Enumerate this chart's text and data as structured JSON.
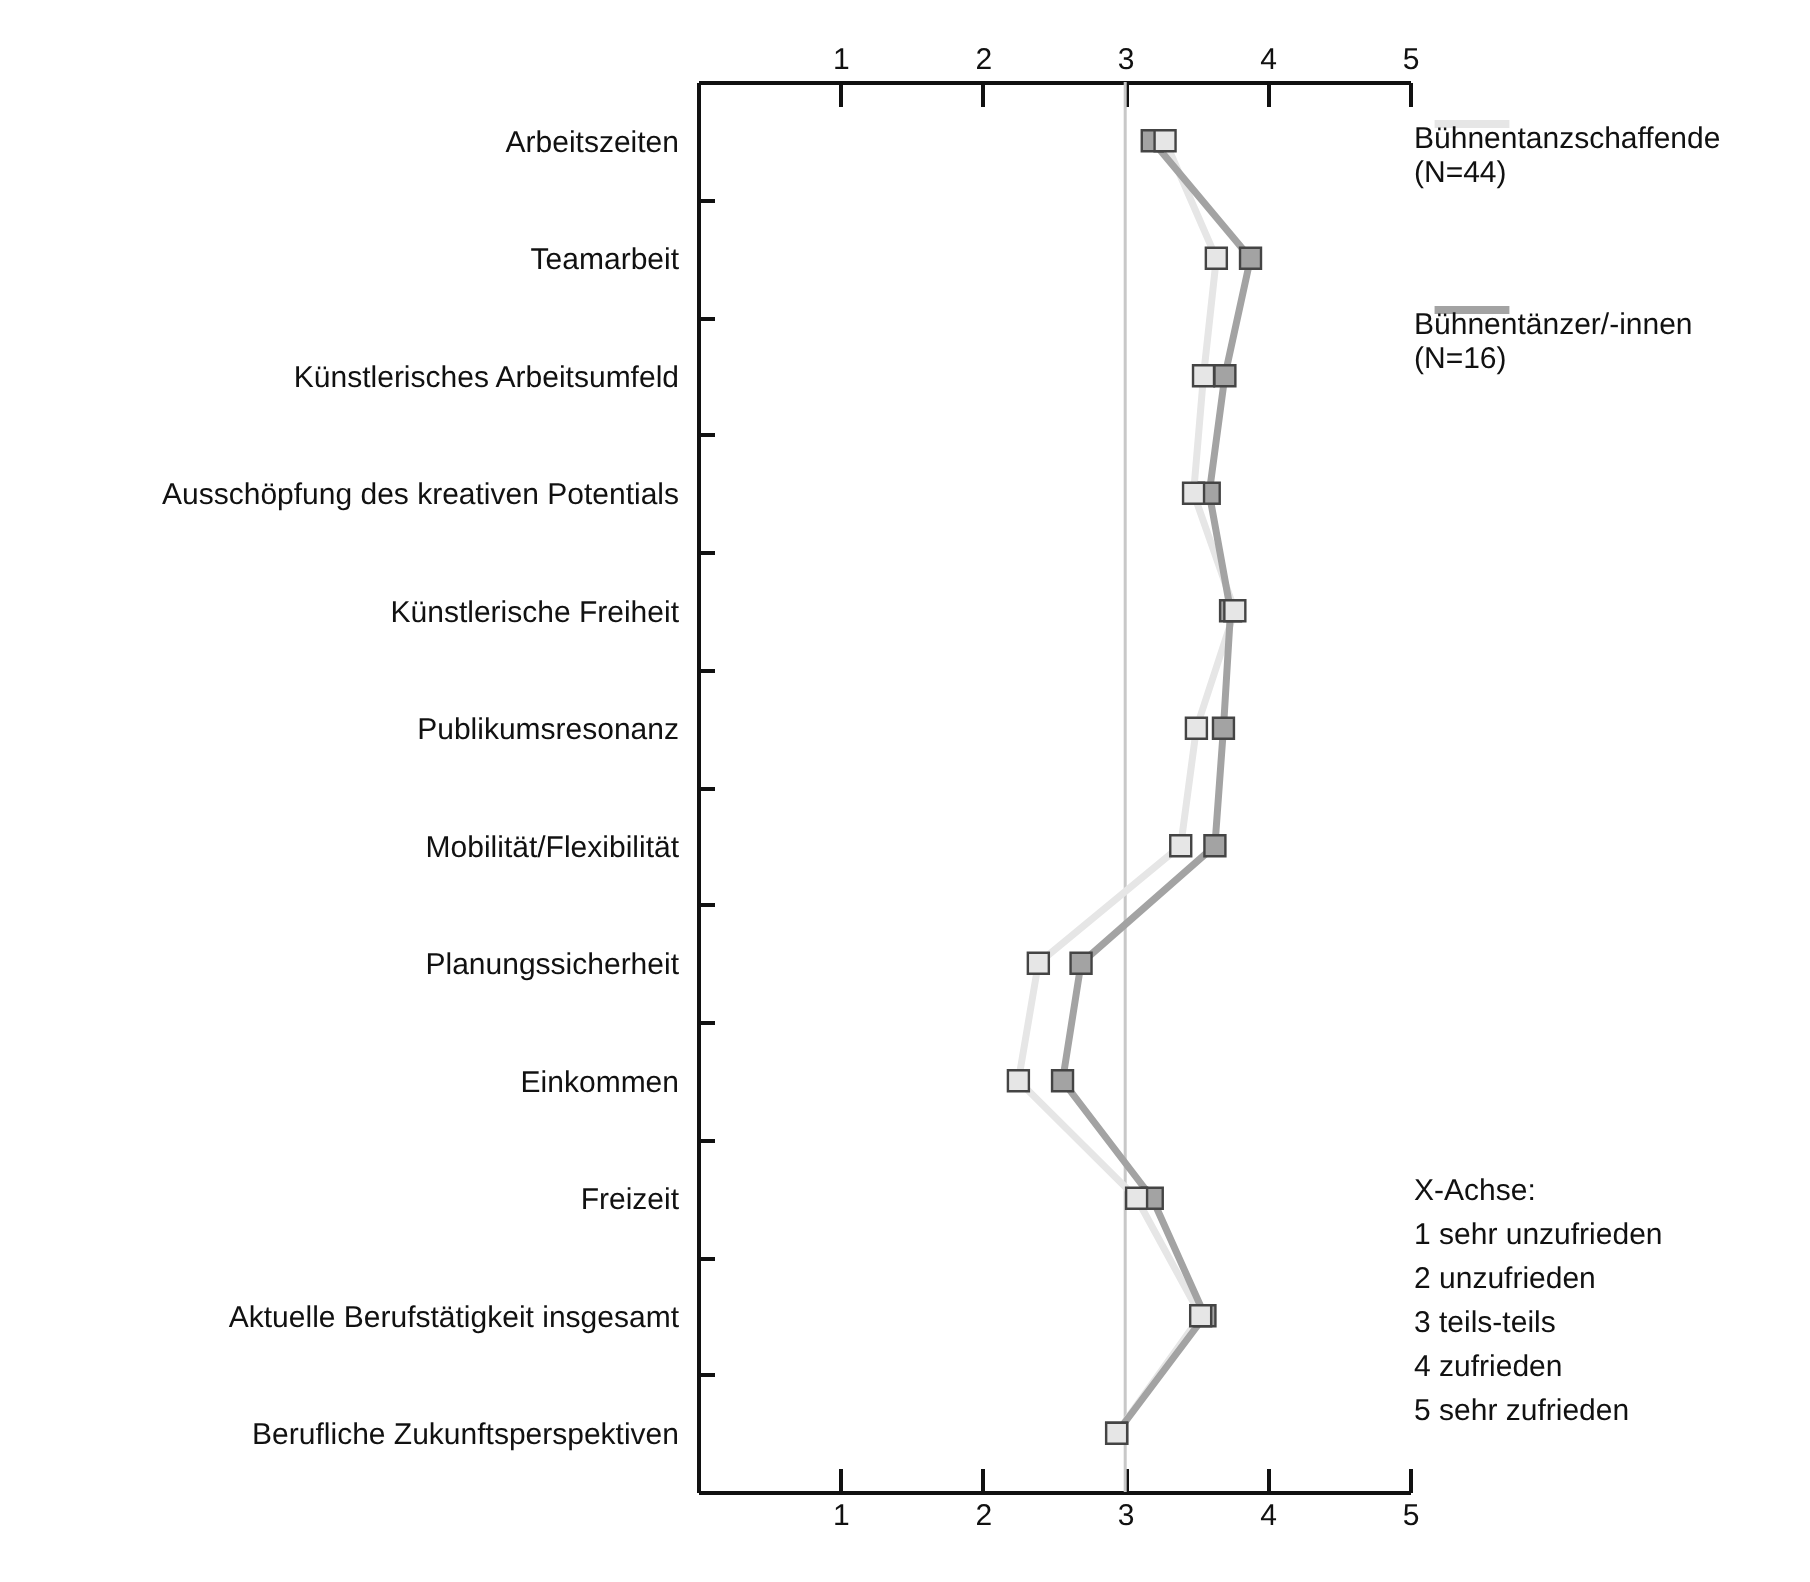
{
  "chart_data": {
    "type": "line",
    "categories": [
      "Arbeitszeiten",
      "Teamarbeit",
      "Künstlerisches Arbeitsumfeld",
      "Ausschöpfung des kreativen Potentials",
      "Künstlerische Freiheit",
      "Publikumsresonanz",
      "Mobilität/Flexibilität",
      "Planungssicherheit",
      "Einkommen",
      "Freizeit",
      "Aktuelle Berufstätigkeit insgesamt",
      "Berufliche Zukunftsperspektiven"
    ],
    "series": [
      {
        "name": "Bühnentanzschaffende\n(N=44)",
        "color": "#e6e6e6",
        "values": [
          3.28,
          3.64,
          3.55,
          3.48,
          3.77,
          3.5,
          3.39,
          2.39,
          2.25,
          3.08,
          3.53,
          2.94
        ]
      },
      {
        "name": "Bühnentänzer/-innen\n(N=16)",
        "color": "#a3a3a3",
        "values": [
          3.19,
          3.88,
          3.7,
          3.59,
          3.74,
          3.69,
          3.63,
          2.69,
          2.56,
          3.19,
          3.56,
          2.94
        ]
      }
    ],
    "orientation": "horizontal",
    "xlim": [
      0,
      5
    ],
    "xticks": [
      1,
      2,
      3,
      4,
      5
    ],
    "x2lim": [
      0,
      5
    ],
    "x2ticks": [
      1,
      2,
      3,
      4,
      5
    ],
    "ref_lines": [
      {
        "axis": "x",
        "value": 3,
        "color": "#c8c8c8"
      }
    ],
    "annotations": [
      "X-Achse:",
      "1 sehr unzufrieden",
      "2 unzufrieden",
      "3 teils-teils",
      "4 zufrieden",
      "5 sehr zufrieden"
    ],
    "marker": "square",
    "line_style": "solid",
    "grid": false,
    "legend": "right"
  }
}
